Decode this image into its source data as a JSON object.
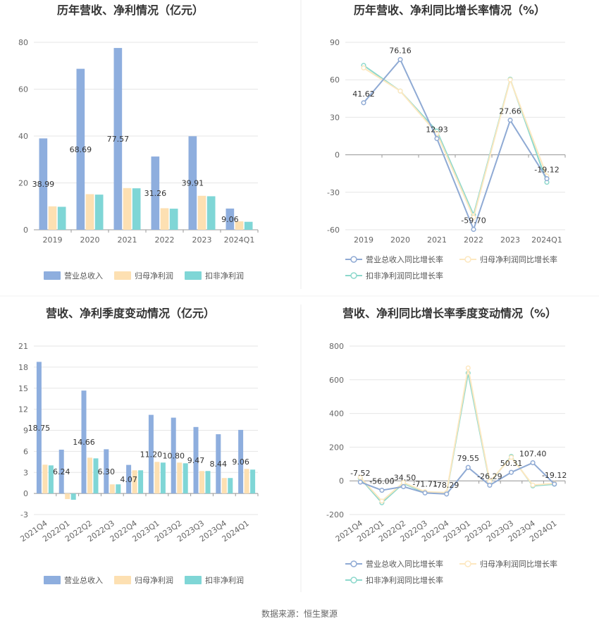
{
  "footer": {
    "source": "数据来源：恒生聚源"
  },
  "colors": {
    "revenue": "#8eaede",
    "net_profit": "#fde0b2",
    "deducted": "#7fd6d6",
    "line_revenue": "#8faad4",
    "line_net": "#fde8c0",
    "line_deducted": "#8dd8cc"
  },
  "chart_data": [
    {
      "type": "bar",
      "title": "历年营收、净利情况（亿元）",
      "categories": [
        "2019",
        "2020",
        "2021",
        "2022",
        "2023",
        "2024Q1"
      ],
      "yticks": [
        "0",
        "20",
        "40",
        "60",
        "80"
      ],
      "ylim": [
        0,
        80
      ],
      "series": [
        {
          "name": "营业总收入",
          "values": [
            38.99,
            68.69,
            77.57,
            31.26,
            39.91,
            9.06
          ]
        },
        {
          "name": "归母净利润",
          "values": [
            10.0,
            15.2,
            17.8,
            9.2,
            14.5,
            3.6
          ]
        },
        {
          "name": "扣非净利润",
          "values": [
            9.8,
            15.0,
            17.7,
            9.0,
            14.3,
            3.4
          ]
        }
      ],
      "labels": [
        "38.99",
        "68.69",
        "77.57",
        "31.26",
        "39.91",
        "9.06"
      ],
      "legend": [
        "营业总收入",
        "归母净利润",
        "扣非净利润"
      ]
    },
    {
      "type": "line",
      "title": "历年营收、净利同比增长率情况（%）",
      "categories": [
        "2019",
        "2020",
        "2021",
        "2022",
        "2023",
        "2024Q1"
      ],
      "yticks": [
        "-60",
        "-30",
        "0",
        "30",
        "60",
        "90"
      ],
      "ylim": [
        -60,
        90
      ],
      "series": [
        {
          "name": "营业总收入同比增长率",
          "values": [
            41.62,
            76.16,
            12.93,
            -59.7,
            27.66,
            -19.12
          ]
        },
        {
          "name": "归母净利润同比增长率",
          "values": [
            69.5,
            51.0,
            17.0,
            -50.0,
            60.0,
            -17.0
          ]
        },
        {
          "name": "扣非净利润同比增长率",
          "values": [
            71.5,
            51.0,
            19.0,
            -48.0,
            60.5,
            -22.0
          ]
        }
      ],
      "labels": [
        "41.62",
        "76.16",
        "12.93",
        "-59.70",
        "27.66",
        "-19.12"
      ],
      "legend": [
        "营业总收入同比增长率",
        "归母净利润同比增长率",
        "扣非净利润同比增长率"
      ]
    },
    {
      "type": "bar",
      "title": "营收、净利季度变动情况（亿元）",
      "categories": [
        "2021Q4",
        "2022Q1",
        "2022Q2",
        "2022Q3",
        "2022Q4",
        "2023Q1",
        "2023Q2",
        "2023Q3",
        "2023Q4",
        "2024Q1"
      ],
      "yticks": [
        "-3",
        "0",
        "3",
        "6",
        "9",
        "12",
        "15",
        "18",
        "21"
      ],
      "ylim": [
        -3,
        21
      ],
      "series": [
        {
          "name": "营业总收入",
          "values": [
            18.75,
            6.24,
            14.66,
            6.3,
            4.07,
            11.2,
            10.8,
            9.47,
            8.44,
            9.06
          ]
        },
        {
          "name": "归母净利润",
          "values": [
            4.1,
            -0.8,
            5.1,
            1.3,
            3.3,
            4.5,
            4.4,
            3.2,
            2.2,
            3.5
          ]
        },
        {
          "name": "扣非净利润",
          "values": [
            4.0,
            -0.9,
            5.0,
            1.3,
            3.3,
            4.4,
            4.3,
            3.2,
            2.2,
            3.4
          ]
        }
      ],
      "labels": [
        "18.75",
        "6.24",
        "14.66",
        "6.30",
        "4.07",
        "11.20",
        "10.80",
        "9.47",
        "8.44",
        "9.06"
      ],
      "legend": [
        "营业总收入",
        "归母净利润",
        "扣非净利润"
      ]
    },
    {
      "type": "line",
      "title": "营收、净利同比增长率季度变动情况（%）",
      "categories": [
        "2021Q4",
        "2022Q1",
        "2022Q2",
        "2022Q3",
        "2022Q4",
        "2023Q1",
        "2023Q2",
        "2023Q3",
        "2023Q4",
        "2024Q1"
      ],
      "yticks": [
        "-200",
        "0",
        "200",
        "400",
        "600",
        "800"
      ],
      "ylim": [
        -200,
        800
      ],
      "series": [
        {
          "name": "营业总收入同比增长率",
          "values": [
            -7.52,
            -56.0,
            -34.5,
            -71.71,
            -78.29,
            79.55,
            -26.29,
            50.31,
            107.4,
            -19.12
          ]
        },
        {
          "name": "归母净利润同比增长率",
          "values": [
            20,
            -120,
            -10,
            -65,
            -70,
            670,
            -5,
            140,
            -25,
            -15
          ]
        },
        {
          "name": "扣非净利润同比增长率",
          "values": [
            15,
            -130,
            -15,
            -70,
            -72,
            640,
            -10,
            145,
            -30,
            -20
          ]
        }
      ],
      "labels": [
        "-7.52",
        "-56.00",
        "-34.50",
        "-71.71",
        "-78.29",
        "79.55",
        "-26.29",
        "50.31",
        "107.40",
        "-19.12"
      ],
      "legend": [
        "营业总收入同比增长率",
        "归母净利润同比增长率",
        "扣非净利润同比增长率"
      ]
    }
  ]
}
